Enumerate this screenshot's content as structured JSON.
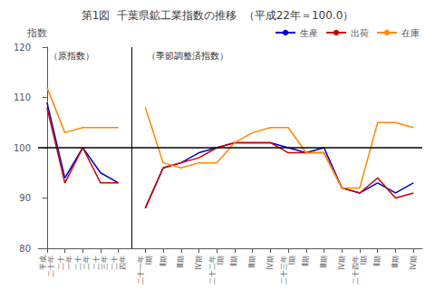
{
  "chart_data": {
    "type": "line",
    "title": "第1図  千葉県鉱工業指数の推移  （平成22年＝100.0）",
    "ylabel": "指数",
    "ylim": [
      80,
      120
    ],
    "yticks": [
      80,
      90,
      100,
      110,
      120
    ],
    "grid": false,
    "legend": "upper right",
    "reference_line": 100,
    "series": [
      {
        "name": "生産",
        "color": "#0000cc"
      },
      {
        "name": "出荷",
        "color": "#cc0000"
      },
      {
        "name": "在庫",
        "color": "#ff8800"
      }
    ],
    "sections": [
      {
        "label": "（原指数）",
        "categories": [
          "平成\n二十年",
          "二十\n一年",
          "二十\n二年",
          "二十\n三年",
          "二十\n四年"
        ],
        "values": [
          [
            109,
            94,
            100,
            95,
            93
          ],
          [
            108,
            93,
            100,
            93,
            93
          ],
          [
            112,
            103,
            104,
            104,
            104
          ]
        ]
      },
      {
        "label": "（季節調整済指数）",
        "categories": [
          "二十一年\nⅠ期",
          "Ⅱ期",
          "Ⅲ期",
          "Ⅳ期",
          "二十二年\nⅠ期",
          "Ⅱ期",
          "Ⅲ期",
          "Ⅳ期",
          "二十三年\nⅠ期",
          "Ⅱ期",
          "Ⅲ期",
          "Ⅳ期",
          "二十四年\nⅠ期",
          "Ⅱ期",
          "Ⅲ期",
          "Ⅳ期"
        ],
        "values": [
          [
            88,
            96,
            97,
            99,
            100,
            101,
            101,
            101,
            100,
            99,
            100,
            92,
            91,
            93,
            91,
            93
          ],
          [
            88,
            96,
            97,
            98,
            100,
            101,
            101,
            101,
            99,
            99,
            99,
            92,
            91,
            94,
            90,
            91
          ],
          [
            108,
            97,
            96,
            97,
            97,
            101,
            103,
            104,
            104,
            99,
            99,
            92,
            92,
            105,
            105,
            104
          ]
        ]
      }
    ]
  }
}
